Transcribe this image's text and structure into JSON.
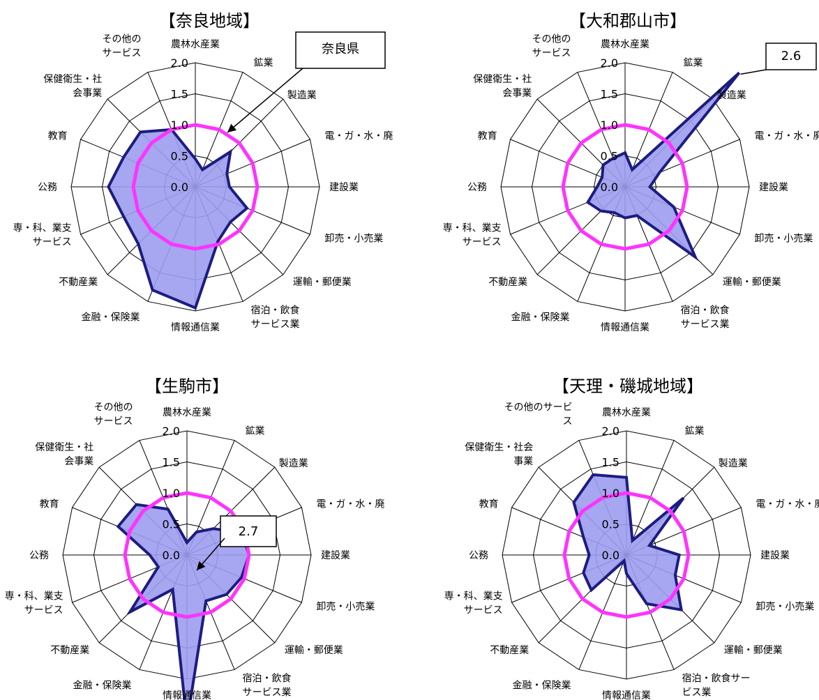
{
  "chart_data": [
    {
      "type": "radar",
      "title": "【奈良地域】",
      "categories": [
        "農林水産業",
        "鉱業",
        "製造業",
        "電・ガ・水・廃",
        "建設業",
        "卸売・小売業",
        "運輸・郵便業",
        "宿泊・飲食サービス業",
        "情報通信業",
        "金融・保険業",
        "不動産業",
        "専・科、業支サービス",
        "公務",
        "教育",
        "保健衛生・社会事業",
        "その他のサービス"
      ],
      "category_labels": [
        [
          "農林水産業"
        ],
        [
          "鉱業"
        ],
        [
          "製造業"
        ],
        [
          "電・ガ・水・廃"
        ],
        [
          "建設業"
        ],
        [
          "卸売・小売業"
        ],
        [
          "運輸・郵便業"
        ],
        [
          "宿泊・飲食",
          "サービス業"
        ],
        [
          "情報通信業"
        ],
        [
          "金融・保険業"
        ],
        [
          "不動産業"
        ],
        [
          "専・科、業支",
          "サービス"
        ],
        [
          "公務"
        ],
        [
          "教育"
        ],
        [
          "保健衛生・社",
          "会事業"
        ],
        [
          "その他の",
          "サービス"
        ]
      ],
      "rlim": [
        0,
        2.0
      ],
      "ticks": [
        "0.0",
        "0.5",
        "1.0",
        "1.5",
        "2.0"
      ],
      "series": [
        {
          "name": "",
          "color": "#1c1c80",
          "fill": "#9c9cf0",
          "values": [
            0.45,
            0.3,
            0.8,
            0.55,
            0.55,
            0.9,
            0.8,
            0.95,
            1.95,
            1.8,
            1.3,
            1.25,
            1.4,
            1.25,
            1.25,
            1.0
          ]
        },
        {
          "name": "奈良県",
          "color": "#ff33ff",
          "values": [
            1,
            1,
            1,
            1,
            1,
            1,
            1,
            1,
            1,
            1,
            1,
            1,
            1,
            1,
            1,
            1
          ]
        }
      ],
      "annotation": {
        "text": "奈良県"
      }
    },
    {
      "type": "radar",
      "title": "【大和郡山市】",
      "categories": [
        "農林水産業",
        "鉱業",
        "製造業",
        "電・ガ・水・廃",
        "建設業",
        "卸売・小売業",
        "運輸・郵便業",
        "宿泊・飲食サービス業",
        "情報通信業",
        "金融・保険業",
        "不動産業",
        "専・科、業支サービス",
        "公務",
        "教育",
        "保健衛生・社会事業",
        "その他のサービス"
      ],
      "category_labels": [
        [
          "農林水産業"
        ],
        [
          "鉱業"
        ],
        [
          "製造業"
        ],
        [
          "電・ガ・水・廃"
        ],
        [
          "建設業"
        ],
        [
          "卸売・小売業"
        ],
        [
          "運輸・郵便業"
        ],
        [
          "宿泊・飲食",
          "サービス業"
        ],
        [
          "情報通信業"
        ],
        [
          "金融・保険業"
        ],
        [
          "不動産業"
        ],
        [
          "専・科、業支",
          "サービス"
        ],
        [
          "公務"
        ],
        [
          "教育"
        ],
        [
          "保健衛生・社",
          "会事業"
        ],
        [
          "その他の",
          "サービス"
        ]
      ],
      "rlim": [
        0,
        2.0
      ],
      "ticks": [
        "0.0",
        "0.5",
        "1.0",
        "1.5",
        "2.0"
      ],
      "series": [
        {
          "name": "",
          "color": "#1c1c80",
          "fill": "#9c9cf0",
          "values": [
            0.55,
            0.3,
            2.6,
            0.6,
            0.4,
            0.85,
            1.6,
            0.5,
            0.5,
            0.45,
            0.55,
            0.65,
            0.45,
            0.4,
            0.5,
            0.5
          ]
        },
        {
          "name": "奈良県",
          "color": "#ff33ff",
          "values": [
            1,
            1,
            1,
            1,
            1,
            1,
            1,
            1,
            1,
            1,
            1,
            1,
            1,
            1,
            1,
            1
          ]
        }
      ],
      "annotation": {
        "text": "2.6"
      }
    },
    {
      "type": "radar",
      "title": "【生駒市】",
      "categories": [
        "農林水産業",
        "鉱業",
        "製造業",
        "電・ガ・水・廃",
        "建設業",
        "卸売・小売業",
        "運輸・郵便業",
        "宿泊・飲食サービス業",
        "情報通信業",
        "金融・保険業",
        "不動産業",
        "専・科、業支サービス",
        "公務",
        "教育",
        "保健衛生・社会事業",
        "その他のサービス"
      ],
      "category_labels": [
        [
          "農林水産業"
        ],
        [
          "鉱業"
        ],
        [
          "製造業"
        ],
        [
          "電・ガ・水・廃"
        ],
        [
          "建設業"
        ],
        [
          "卸売・小売業"
        ],
        [
          "運輸・郵便業"
        ],
        [
          "宿泊・飲食",
          "サービス業"
        ],
        [
          "情報通信業"
        ],
        [
          "金融・保険業"
        ],
        [
          "不動産業"
        ],
        [
          "専・科、業支",
          "サービス"
        ],
        [
          "公務"
        ],
        [
          "教育"
        ],
        [
          "保健衛生・社",
          "会事業"
        ],
        [
          "その他の",
          "サービス"
        ]
      ],
      "rlim": [
        0,
        2.0
      ],
      "ticks": [
        "0.0",
        "0.5",
        "1.0",
        "1.5",
        "2.0"
      ],
      "series": [
        {
          "name": "",
          "color": "#1c1c80",
          "fill": "#9c9cf0",
          "values": [
            0.2,
            0.4,
            0.6,
            0.95,
            1.0,
            0.95,
            0.9,
            0.8,
            2.7,
            0.6,
            1.3,
            0.5,
            0.6,
            1.2,
            1.15,
            0.8
          ]
        },
        {
          "name": "奈良県",
          "color": "#ff33ff",
          "values": [
            1,
            1,
            1,
            1,
            1,
            1,
            1,
            1,
            1,
            1,
            1,
            1,
            1,
            1,
            1,
            1
          ]
        }
      ],
      "annotation": {
        "text": "2.7"
      }
    },
    {
      "type": "radar",
      "title": "【天理・磯城地域】",
      "categories": [
        "農林水産業",
        "鉱業",
        "製造業",
        "電・ガ・水・廃",
        "建設業",
        "卸売・小売業",
        "運輸・郵便業",
        "宿泊・飲食サービス業",
        "情報通信業",
        "金融・保険業",
        "不動産業",
        "専・科、業支サービス",
        "公務",
        "教育",
        "保健衛生・社会事業",
        "その他のサービス"
      ],
      "category_labels": [
        [
          "農林水産業"
        ],
        [
          "鉱業"
        ],
        [
          "製造業"
        ],
        [
          "電・ガ・水・廃"
        ],
        [
          "建設業"
        ],
        [
          "卸売・小売業"
        ],
        [
          "運輸・郵便業"
        ],
        [
          "宿泊・飲食サー",
          "ビス業"
        ],
        [
          "情報通信業"
        ],
        [
          "金融・保険業"
        ],
        [
          "不動産業"
        ],
        [
          "専・科、業支",
          "サービス"
        ],
        [
          "公務"
        ],
        [
          "教育"
        ],
        [
          "保健衛生・社会",
          "事業"
        ],
        [
          "その他のサービ",
          "ス"
        ]
      ],
      "rlim": [
        0,
        2.0
      ],
      "ticks": [
        "0.0",
        "0.5",
        "1.0",
        "1.5",
        "2.0"
      ],
      "series": [
        {
          "name": "",
          "color": "#1c1c80",
          "fill": "#9c9cf0",
          "values": [
            1.25,
            0.25,
            1.3,
            0.4,
            0.85,
            0.85,
            1.25,
            0.85,
            0.3,
            0.1,
            0.8,
            0.75,
            0.6,
            0.75,
            1.2,
            1.4
          ]
        },
        {
          "name": "奈良県",
          "color": "#ff33ff",
          "values": [
            1,
            1,
            1,
            1,
            1,
            1,
            1,
            1,
            1,
            1,
            1,
            1,
            1,
            1,
            1,
            1
          ]
        }
      ],
      "annotation": null
    }
  ]
}
